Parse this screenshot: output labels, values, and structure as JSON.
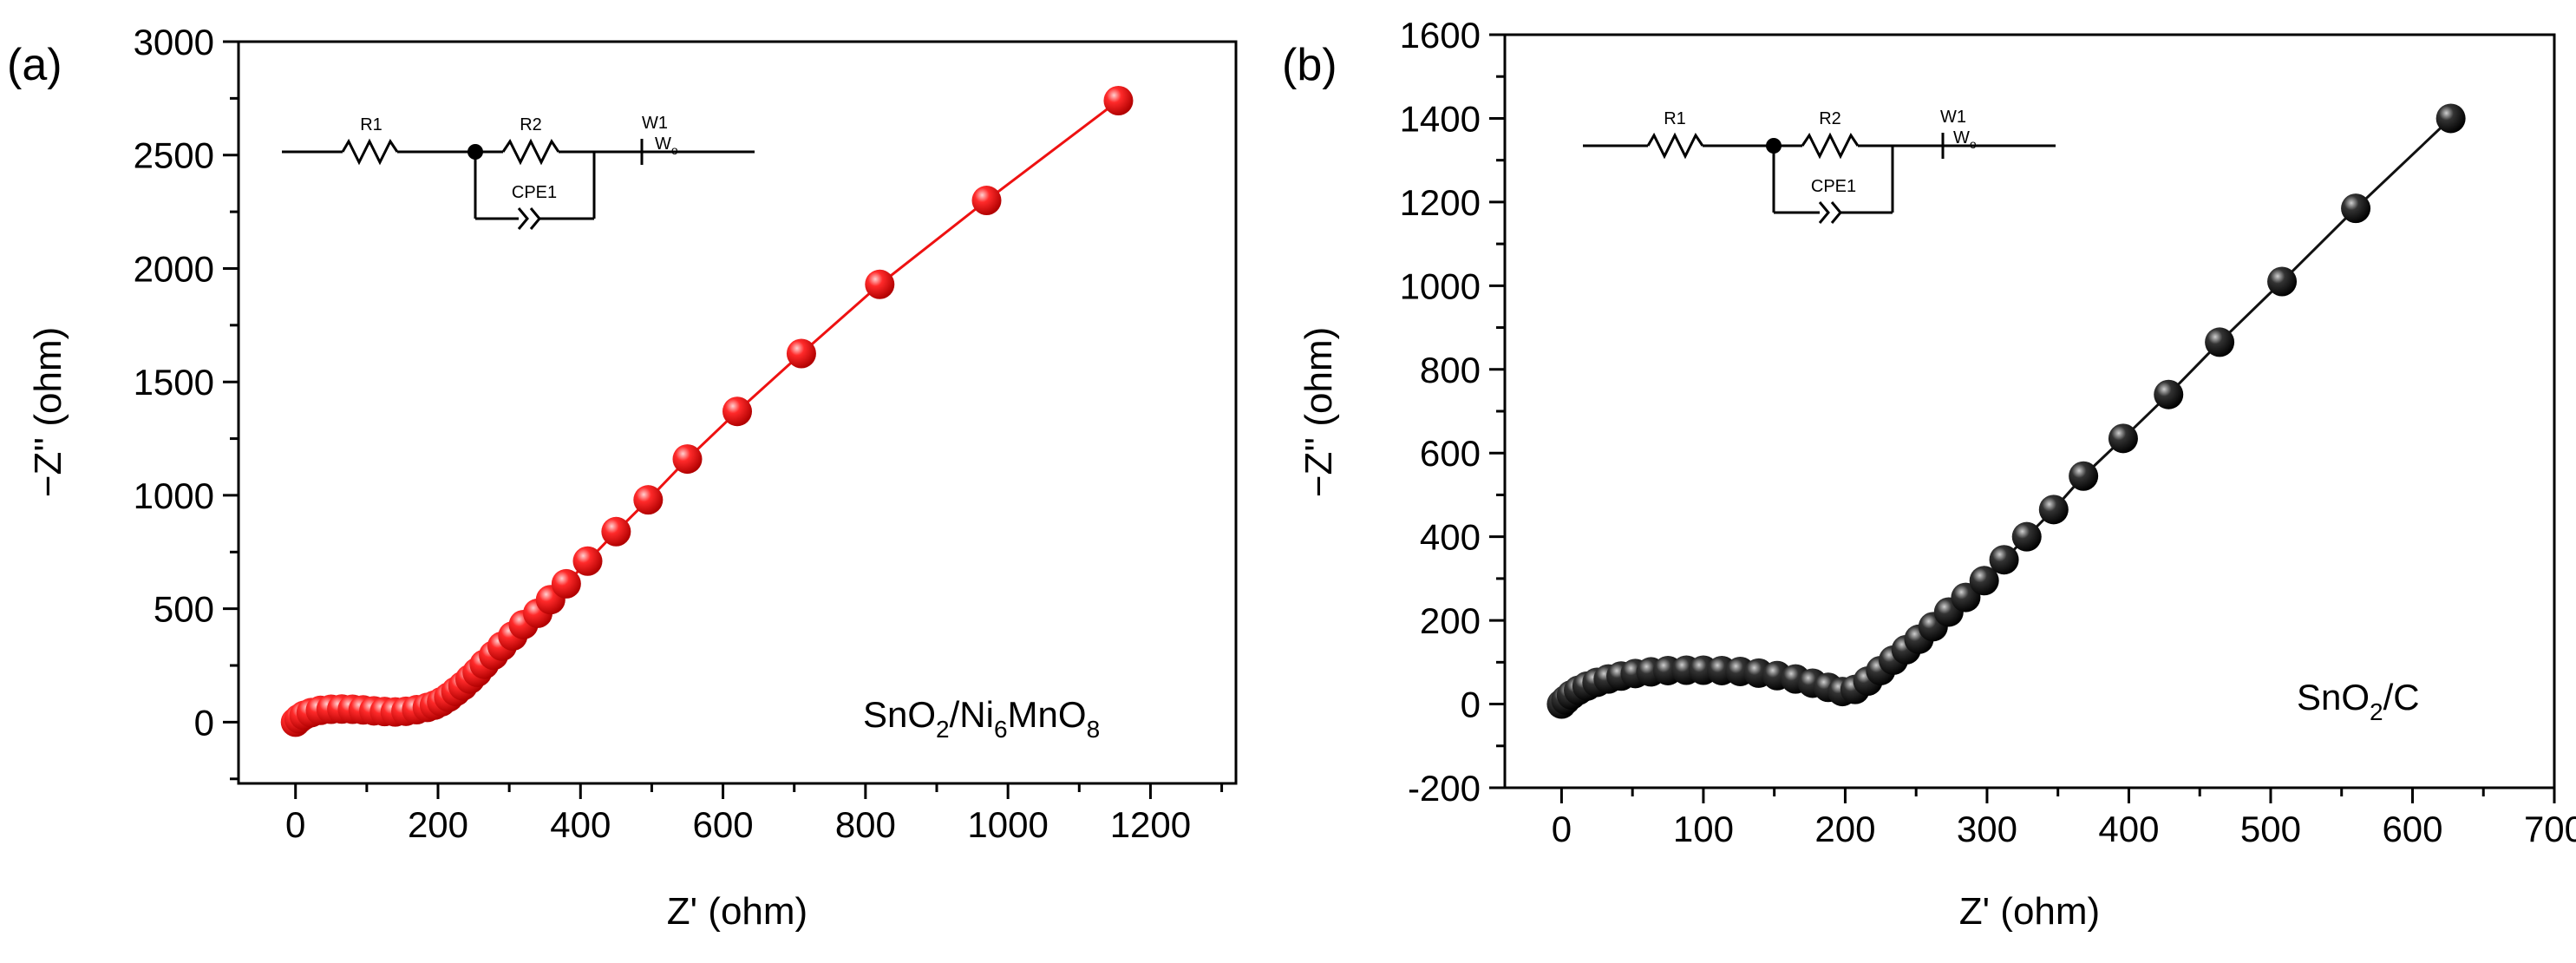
{
  "chart_data": [
    {
      "type": "scatter",
      "panel_label": "(a)",
      "xlabel": "Z' (ohm)",
      "ylabel": "−Z'' (ohm)",
      "xlim": [
        -80,
        1320
      ],
      "ylim": [
        -270,
        3000
      ],
      "xticks": [
        0,
        200,
        400,
        600,
        800,
        1000,
        1200
      ],
      "yticks": [
        0,
        500,
        1000,
        1500,
        2000,
        2500,
        3000
      ],
      "marker_color": "#ee1111",
      "line_color": "#ee1111",
      "legend_text": {
        "pre": "SnO",
        "s1": "2",
        "mid1": "/Ni",
        "s2": "6",
        "mid2": "MnO",
        "s3": "8"
      },
      "legend_position": "bottom-right",
      "circuit": {
        "r1": "R1",
        "r2": "R2",
        "w1": "W1",
        "wo": "W",
        "wo_sub": "o",
        "cpe": "CPE1"
      },
      "series": [
        {
          "name": "SnO2/Ni6MnO8",
          "x": [
            0,
            5,
            12,
            22,
            35,
            50,
            65,
            80,
            95,
            110,
            125,
            140,
            155,
            170,
            185,
            195,
            205,
            215,
            225,
            235,
            245,
            255,
            265,
            278,
            290,
            305,
            320,
            340,
            358,
            380,
            410,
            450,
            495,
            550,
            620,
            710,
            820,
            970,
            1155
          ],
          "y": [
            0,
            15,
            30,
            42,
            52,
            57,
            58,
            57,
            54,
            50,
            47,
            45,
            48,
            55,
            65,
            75,
            90,
            110,
            135,
            160,
            190,
            220,
            255,
            295,
            335,
            380,
            430,
            480,
            540,
            610,
            710,
            840,
            980,
            1160,
            1370,
            1625,
            1930,
            2300,
            2740
          ]
        }
      ]
    },
    {
      "type": "scatter",
      "panel_label": "(b)",
      "xlabel": "Z' (ohm)",
      "ylabel": "−Z'' (ohm)",
      "xlim": [
        -40,
        700
      ],
      "ylim": [
        -200,
        1600
      ],
      "xticks": [
        0,
        100,
        200,
        300,
        400,
        500,
        600,
        700
      ],
      "yticks": [
        -200,
        0,
        200,
        400,
        600,
        800,
        1000,
        1200,
        1400,
        1600
      ],
      "marker_color": "#111111",
      "line_color": "#111111",
      "legend_text": {
        "pre": "SnO",
        "s1": "2",
        "mid1": "/C"
      },
      "legend_position": "bottom-right",
      "circuit": {
        "r1": "R1",
        "r2": "R2",
        "w1": "W1",
        "wo": "W",
        "wo_sub": "o",
        "cpe": "CPE1"
      },
      "series": [
        {
          "name": "SnO2/C",
          "x": [
            0,
            3,
            7,
            12,
            18,
            25,
            33,
            42,
            52,
            63,
            75,
            88,
            100,
            113,
            126,
            139,
            152,
            165,
            177,
            188,
            198,
            207,
            216,
            225,
            234,
            243,
            252,
            262,
            273,
            285,
            298,
            312,
            328,
            347,
            368,
            396,
            428,
            464,
            508,
            560,
            627
          ],
          "y": [
            0,
            10,
            22,
            33,
            43,
            52,
            60,
            67,
            73,
            77,
            80,
            81,
            81,
            80,
            78,
            74,
            68,
            60,
            50,
            40,
            30,
            35,
            55,
            80,
            105,
            130,
            155,
            185,
            220,
            255,
            295,
            345,
            400,
            465,
            545,
            635,
            740,
            865,
            1010,
            1185,
            1400
          ]
        }
      ]
    }
  ]
}
